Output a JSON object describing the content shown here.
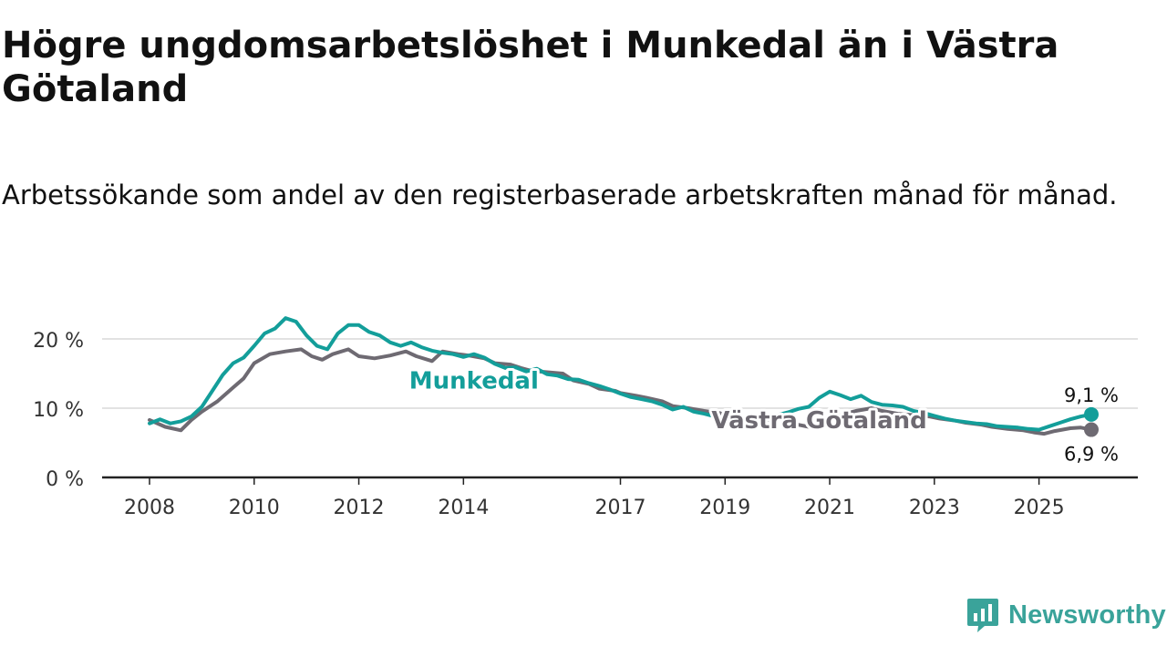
{
  "title": "Högre ungdomsarbetslöshet i Munkedal än i Västra Götaland",
  "subtitle": "Arbetssökande som andel av den registerbaserade arbetskraften månad för månad.",
  "brand": "Newsworthy",
  "chart_data": {
    "type": "line",
    "title": "Högre ungdomsarbetslöshet i Munkedal än i Västra Götaland",
    "xlabel": "",
    "ylabel": "",
    "ylim": [
      0,
      20
    ],
    "xlim": [
      2008,
      2026
    ],
    "grid": true,
    "y_ticks": [
      {
        "value": 0,
        "label": "0 %"
      },
      {
        "value": 10,
        "label": "10 %"
      },
      {
        "value": 20,
        "label": "20 %"
      }
    ],
    "x_ticks": [
      {
        "value": 2008,
        "label": "2008"
      },
      {
        "value": 2010,
        "label": "2010"
      },
      {
        "value": 2012,
        "label": "2012"
      },
      {
        "value": 2014,
        "label": "2014"
      },
      {
        "value": 2017,
        "label": "2017"
      },
      {
        "value": 2019,
        "label": "2019"
      },
      {
        "value": 2021,
        "label": "2021"
      },
      {
        "value": 2023,
        "label": "2023"
      },
      {
        "value": 2025,
        "label": "2025"
      }
    ],
    "series": [
      {
        "name": "Västra Götaland",
        "color": "#6e6a72",
        "end_label": "6,9 %",
        "end_value": 6.9,
        "points": [
          [
            2008.0,
            8.3
          ],
          [
            2008.3,
            7.3
          ],
          [
            2008.6,
            6.8
          ],
          [
            2008.8,
            8.3
          ],
          [
            2009.0,
            9.5
          ],
          [
            2009.3,
            11.0
          ],
          [
            2009.6,
            13.0
          ],
          [
            2009.8,
            14.3
          ],
          [
            2010.0,
            16.5
          ],
          [
            2010.3,
            17.8
          ],
          [
            2010.6,
            18.2
          ],
          [
            2010.9,
            18.5
          ],
          [
            2011.1,
            17.5
          ],
          [
            2011.3,
            17.0
          ],
          [
            2011.5,
            17.8
          ],
          [
            2011.8,
            18.5
          ],
          [
            2012.0,
            17.5
          ],
          [
            2012.3,
            17.2
          ],
          [
            2012.6,
            17.6
          ],
          [
            2012.9,
            18.2
          ],
          [
            2013.1,
            17.5
          ],
          [
            2013.4,
            16.8
          ],
          [
            2013.6,
            18.2
          ],
          [
            2013.9,
            17.8
          ],
          [
            2014.1,
            17.6
          ],
          [
            2014.4,
            17.2
          ],
          [
            2014.6,
            16.5
          ],
          [
            2014.9,
            16.3
          ],
          [
            2015.1,
            15.8
          ],
          [
            2015.3,
            15.4
          ],
          [
            2015.6,
            15.2
          ],
          [
            2015.9,
            15.0
          ],
          [
            2016.1,
            14.0
          ],
          [
            2016.4,
            13.5
          ],
          [
            2016.6,
            12.8
          ],
          [
            2016.9,
            12.5
          ],
          [
            2017.0,
            12.2
          ],
          [
            2017.3,
            11.8
          ],
          [
            2017.5,
            11.5
          ],
          [
            2017.8,
            11.0
          ],
          [
            2018.0,
            10.3
          ],
          [
            2018.3,
            10.0
          ],
          [
            2018.6,
            9.6
          ],
          [
            2018.9,
            9.3
          ],
          [
            2019.1,
            8.6
          ],
          [
            2019.4,
            8.1
          ],
          [
            2019.6,
            8.0
          ],
          [
            2019.8,
            8.3
          ],
          [
            2020.0,
            8.7
          ],
          [
            2020.2,
            8.0
          ],
          [
            2020.4,
            7.6
          ],
          [
            2020.6,
            7.3
          ],
          [
            2020.8,
            7.8
          ],
          [
            2021.0,
            8.5
          ],
          [
            2021.3,
            9.2
          ],
          [
            2021.5,
            9.6
          ],
          [
            2021.8,
            10.0
          ],
          [
            2022.0,
            9.6
          ],
          [
            2022.3,
            9.2
          ],
          [
            2022.6,
            9.0
          ],
          [
            2022.9,
            8.8
          ],
          [
            2023.1,
            8.5
          ],
          [
            2023.4,
            8.2
          ],
          [
            2023.6,
            7.9
          ],
          [
            2023.9,
            7.6
          ],
          [
            2024.1,
            7.3
          ],
          [
            2024.4,
            7.0
          ],
          [
            2024.7,
            6.8
          ],
          [
            2024.9,
            6.5
          ],
          [
            2025.1,
            6.3
          ],
          [
            2025.3,
            6.7
          ],
          [
            2025.6,
            7.1
          ],
          [
            2025.8,
            7.2
          ],
          [
            2026.0,
            6.9
          ]
        ]
      },
      {
        "name": "Munkedal",
        "color": "#139e9a",
        "end_label": "9,1 %",
        "end_value": 9.1,
        "points": [
          [
            2008.0,
            7.8
          ],
          [
            2008.2,
            8.4
          ],
          [
            2008.4,
            7.8
          ],
          [
            2008.6,
            8.1
          ],
          [
            2008.8,
            8.8
          ],
          [
            2009.0,
            10.2
          ],
          [
            2009.2,
            12.5
          ],
          [
            2009.4,
            14.8
          ],
          [
            2009.6,
            16.5
          ],
          [
            2009.8,
            17.3
          ],
          [
            2010.0,
            19.0
          ],
          [
            2010.2,
            20.8
          ],
          [
            2010.4,
            21.5
          ],
          [
            2010.6,
            23.0
          ],
          [
            2010.8,
            22.5
          ],
          [
            2011.0,
            20.5
          ],
          [
            2011.2,
            19.0
          ],
          [
            2011.4,
            18.5
          ],
          [
            2011.6,
            20.8
          ],
          [
            2011.8,
            22.0
          ],
          [
            2012.0,
            22.0
          ],
          [
            2012.2,
            21.0
          ],
          [
            2012.4,
            20.5
          ],
          [
            2012.6,
            19.5
          ],
          [
            2012.8,
            19.0
          ],
          [
            2013.0,
            19.5
          ],
          [
            2013.2,
            18.8
          ],
          [
            2013.4,
            18.3
          ],
          [
            2013.6,
            18.0
          ],
          [
            2013.8,
            17.8
          ],
          [
            2014.0,
            17.4
          ],
          [
            2014.2,
            17.8
          ],
          [
            2014.4,
            17.3
          ],
          [
            2014.6,
            16.4
          ],
          [
            2014.8,
            15.8
          ],
          [
            2015.0,
            15.9
          ],
          [
            2015.2,
            15.3
          ],
          [
            2015.4,
            15.7
          ],
          [
            2015.6,
            14.9
          ],
          [
            2015.8,
            14.7
          ],
          [
            2016.0,
            14.2
          ],
          [
            2016.2,
            14.1
          ],
          [
            2016.4,
            13.6
          ],
          [
            2016.6,
            13.2
          ],
          [
            2016.8,
            12.7
          ],
          [
            2017.0,
            12.1
          ],
          [
            2017.2,
            11.6
          ],
          [
            2017.4,
            11.3
          ],
          [
            2017.6,
            11.0
          ],
          [
            2017.8,
            10.5
          ],
          [
            2018.0,
            9.8
          ],
          [
            2018.2,
            10.2
          ],
          [
            2018.4,
            9.5
          ],
          [
            2018.6,
            9.2
          ],
          [
            2018.8,
            8.8
          ],
          [
            2019.0,
            8.3
          ],
          [
            2019.2,
            8.0
          ],
          [
            2019.4,
            7.6
          ],
          [
            2019.6,
            8.1
          ],
          [
            2019.8,
            8.4
          ],
          [
            2020.0,
            9.0
          ],
          [
            2020.2,
            9.4
          ],
          [
            2020.4,
            9.9
          ],
          [
            2020.6,
            10.2
          ],
          [
            2020.8,
            11.5
          ],
          [
            2021.0,
            12.4
          ],
          [
            2021.2,
            11.9
          ],
          [
            2021.4,
            11.3
          ],
          [
            2021.6,
            11.8
          ],
          [
            2021.8,
            10.9
          ],
          [
            2022.0,
            10.5
          ],
          [
            2022.2,
            10.4
          ],
          [
            2022.4,
            10.2
          ],
          [
            2022.6,
            9.6
          ],
          [
            2022.8,
            9.3
          ],
          [
            2023.0,
            8.9
          ],
          [
            2023.2,
            8.5
          ],
          [
            2023.4,
            8.2
          ],
          [
            2023.6,
            8.0
          ],
          [
            2023.8,
            7.8
          ],
          [
            2024.0,
            7.7
          ],
          [
            2024.2,
            7.4
          ],
          [
            2024.4,
            7.3
          ],
          [
            2024.6,
            7.2
          ],
          [
            2024.8,
            7.0
          ],
          [
            2025.0,
            6.9
          ],
          [
            2025.2,
            7.4
          ],
          [
            2025.4,
            7.9
          ],
          [
            2025.6,
            8.4
          ],
          [
            2025.8,
            8.8
          ],
          [
            2026.0,
            9.1
          ]
        ]
      }
    ],
    "annotations": [
      {
        "text": "Munkedal",
        "series": "Munkedal",
        "anchor": [
          2014.2,
          14.0
        ]
      },
      {
        "text": "Västra Götaland",
        "series": "Västra Götaland",
        "anchor": [
          2020.8,
          8.3
        ]
      }
    ]
  }
}
